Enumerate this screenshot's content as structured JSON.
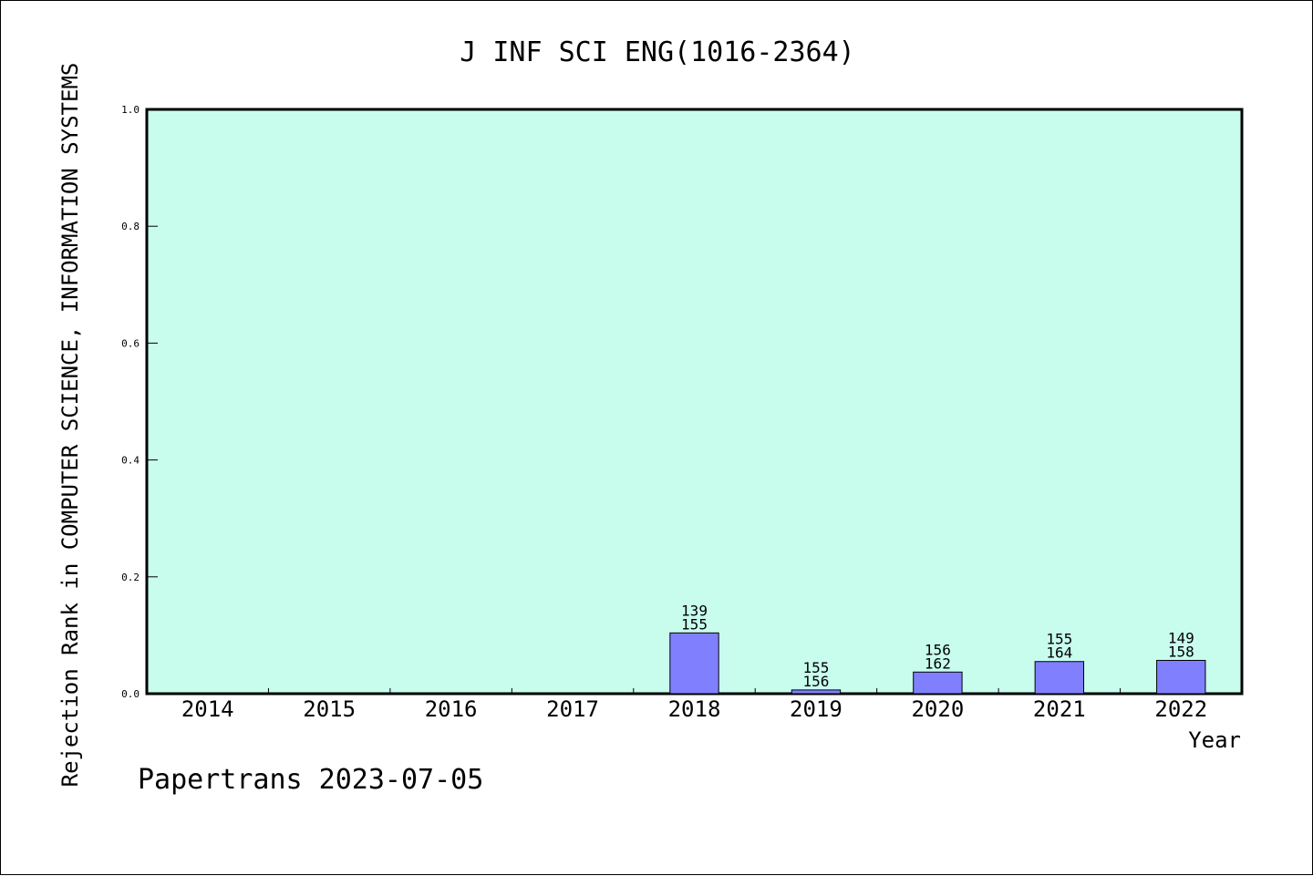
{
  "chart_data": {
    "type": "bar",
    "title": "J INF SCI ENG(1016-2364)",
    "xlabel": "Year",
    "ylabel": "Rejection Rank in COMPUTER SCIENCE, INFORMATION SYSTEMS",
    "categories": [
      "2014",
      "2015",
      "2016",
      "2017",
      "2018",
      "2019",
      "2020",
      "2021",
      "2022"
    ],
    "values": [
      0,
      0,
      0,
      0,
      0.104,
      0.0064,
      0.037,
      0.055,
      0.057
    ],
    "bar_labels": [
      null,
      null,
      null,
      null,
      [
        "139",
        "155"
      ],
      [
        "155",
        "156"
      ],
      [
        "156",
        "162"
      ],
      [
        "155",
        "164"
      ],
      [
        "149",
        "158"
      ]
    ],
    "ylim": [
      0,
      1.0
    ],
    "yticks": [
      "0.0",
      "0.2",
      "0.4",
      "0.6",
      "0.8",
      "1.0"
    ],
    "grid": false,
    "colors": {
      "plot_background": "#c8fdee",
      "bar_fill": "#8080ff",
      "bar_stroke": "#000000"
    }
  },
  "footer": "Papertrans 2023-07-05"
}
